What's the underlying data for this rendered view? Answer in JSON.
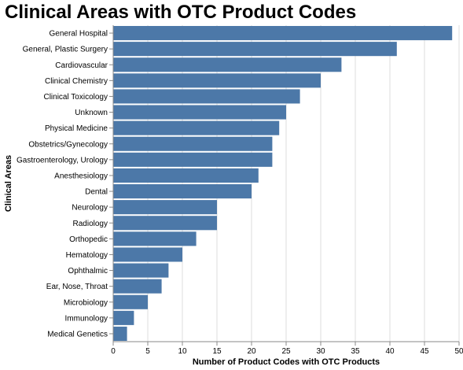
{
  "chart_data": {
    "type": "bar",
    "orientation": "horizontal",
    "title": "Clinical Areas with OTC Product Codes",
    "xlabel": "Number of Product Codes with OTC Products",
    "ylabel": "Clinical Areas",
    "categories": [
      "General Hospital",
      "General, Plastic Surgery",
      "Cardiovascular",
      "Clinical Chemistry",
      "Clinical Toxicology",
      "Unknown",
      "Physical Medicine",
      "Obstetrics/Gynecology",
      "Gastroenterology, Urology",
      "Anesthesiology",
      "Dental",
      "Neurology",
      "Radiology",
      "Orthopedic",
      "Hematology",
      "Ophthalmic",
      "Ear, Nose, Throat",
      "Microbiology",
      "Immunology",
      "Medical Genetics"
    ],
    "values": [
      49,
      41,
      33,
      30,
      27,
      25,
      24,
      23,
      23,
      21,
      20,
      15,
      15,
      12,
      10,
      8,
      7,
      5,
      3,
      2
    ],
    "xlim": [
      0,
      50
    ],
    "xticks": [
      0,
      5,
      10,
      15,
      20,
      25,
      30,
      35,
      40,
      45,
      50
    ],
    "grid": true,
    "bar_color": "#4c78a8",
    "grid_color": "#dddddd",
    "axis_color": "#888888"
  }
}
